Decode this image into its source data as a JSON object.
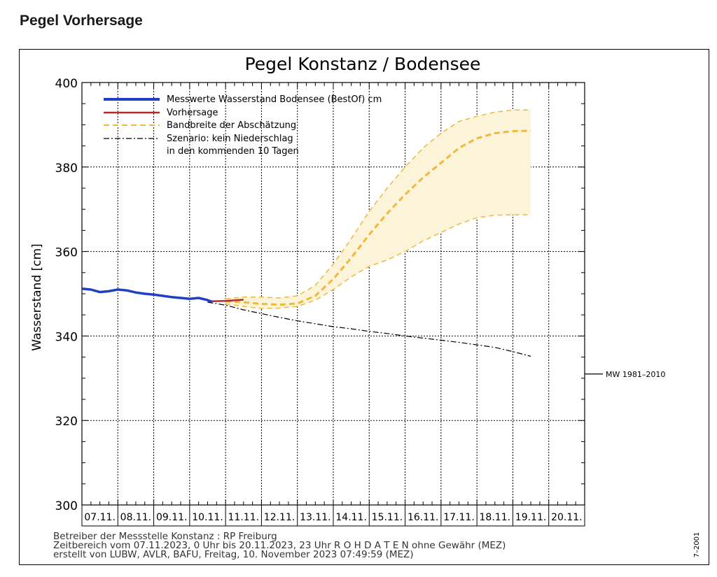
{
  "page": {
    "heading": "Pegel Vorhersage"
  },
  "chart_data": {
    "type": "line",
    "title": "Pegel Konstanz / Bodensee",
    "ylabel": "Wasserstand [cm]",
    "xlabel": "",
    "ylim": [
      300,
      400
    ],
    "yticks": [
      300,
      320,
      340,
      360,
      380,
      400
    ],
    "x_unit": "days from 07.11.2023 00:00",
    "x_categories": [
      "07.11.",
      "08.11.",
      "09.11.",
      "10.11.",
      "11.11.",
      "12.11.",
      "13.11.",
      "14.11.",
      "15.11.",
      "16.11.",
      "17.11.",
      "18.11.",
      "19.11.",
      "20.11."
    ],
    "grid": true,
    "legend_position": "top-left",
    "legend": [
      {
        "label": "Messwerte Wasserstand Bodensee   (BestOf)   cm",
        "color": "#1f3fc4",
        "style": "solid-thick"
      },
      {
        "label": "Vorhersage",
        "color": "#b8282a",
        "style": "solid"
      },
      {
        "label": "Bandbreite der Abschätzung",
        "color": "#f0b840",
        "style": "dashed"
      },
      {
        "label": "Szenario: kein Niederschlag",
        "color": "#000000",
        "style": "dash-dot"
      },
      {
        "label": "in den kommenden 10 Tagen",
        "color": "",
        "style": "none"
      }
    ],
    "series": [
      {
        "name": "Messwerte Wasserstand Bodensee (BestOf) cm",
        "x": [
          "07.11.2023 00:00",
          "07.11.2023 06:00",
          "07.11.2023 12:00",
          "07.11.2023 18:00",
          "08.11.2023 00:00",
          "08.11.2023 06:00",
          "08.11.2023 12:00",
          "08.11.2023 18:00",
          "09.11.2023 00:00",
          "09.11.2023 06:00",
          "09.11.2023 12:00",
          "09.11.2023 18:00",
          "10.11.2023 00:00",
          "10.11.2023 06:00",
          "10.11.2023 12:00",
          "10.11.2023 15:00"
        ],
        "y": [
          351.2,
          351.0,
          350.4,
          350.6,
          351.0,
          350.8,
          350.3,
          350.0,
          349.8,
          349.5,
          349.2,
          349.0,
          348.8,
          349.0,
          348.5,
          348.1
        ]
      },
      {
        "name": "Vorhersage",
        "x": [
          "10.11.2023 12:00",
          "11.11.2023 00:00",
          "11.11.2023 12:00"
        ],
        "y": [
          348.2,
          348.3,
          348.6
        ]
      },
      {
        "name": "Bandbreite der Abschätzung (Median)",
        "x": [
          "11.11.2023 00:00",
          "11.11.2023 12:00",
          "12.11.2023 00:00",
          "12.11.2023 12:00",
          "13.11.2023 00:00",
          "13.11.2023 12:00",
          "14.11.2023 00:00",
          "14.11.2023 12:00",
          "15.11.2023 00:00",
          "15.11.2023 12:00",
          "16.11.2023 00:00",
          "16.11.2023 12:00",
          "17.11.2023 00:00",
          "17.11.2023 12:00",
          "18.11.2023 00:00",
          "18.11.2023 12:00",
          "19.11.2023 00:00",
          "19.11.2023 12:00"
        ],
        "y": [
          348.2,
          348.0,
          347.6,
          347.4,
          347.7,
          349.5,
          353.5,
          358.5,
          364.0,
          369.0,
          373.5,
          377.5,
          381.0,
          384.5,
          386.8,
          388.0,
          388.5,
          388.6
        ]
      },
      {
        "name": "Bandbreite der Abschätzung (Obergrenze)",
        "x": [
          "11.11.2023 00:00",
          "11.11.2023 12:00",
          "12.11.2023 00:00",
          "12.11.2023 12:00",
          "13.11.2023 00:00",
          "13.11.2023 12:00",
          "14.11.2023 00:00",
          "14.11.2023 12:00",
          "15.11.2023 00:00",
          "15.11.2023 12:00",
          "16.11.2023 00:00",
          "16.11.2023 12:00",
          "17.11.2023 00:00",
          "17.11.2023 12:00",
          "18.11.2023 00:00",
          "18.11.2023 12:00",
          "19.11.2023 00:00",
          "19.11.2023 12:00"
        ],
        "y": [
          348.8,
          349.2,
          349.2,
          349.0,
          349.5,
          352.0,
          357.0,
          363.0,
          369.5,
          375.0,
          380.0,
          384.5,
          388.0,
          390.8,
          392.0,
          393.0,
          393.5,
          393.5
        ]
      },
      {
        "name": "Bandbreite der Abschätzung (Untergrenze)",
        "x": [
          "11.11.2023 00:00",
          "11.11.2023 12:00",
          "12.11.2023 00:00",
          "12.11.2023 12:00",
          "13.11.2023 00:00",
          "13.11.2023 12:00",
          "14.11.2023 00:00",
          "14.11.2023 12:00",
          "15.11.2023 00:00",
          "15.11.2023 12:00",
          "16.11.2023 00:00",
          "16.11.2023 12:00",
          "17.11.2023 00:00",
          "17.11.2023 12:00",
          "18.11.2023 00:00",
          "18.11.2023 12:00",
          "19.11.2023 00:00",
          "19.11.2023 12:00"
        ],
        "y": [
          347.6,
          347.0,
          346.5,
          346.6,
          347.0,
          348.5,
          351.0,
          354.0,
          356.5,
          358.0,
          360.0,
          362.5,
          364.5,
          366.5,
          368.0,
          368.6,
          368.7,
          368.7
        ]
      },
      {
        "name": "Szenario: kein Niederschlag in den kommenden 10 Tagen",
        "x": [
          "10.11.2023 12:00",
          "11.11.2023 00:00",
          "11.11.2023 12:00",
          "12.11.2023 00:00",
          "12.11.2023 12:00",
          "13.11.2023 00:00",
          "13.11.2023 12:00",
          "14.11.2023 00:00",
          "14.11.2023 12:00",
          "15.11.2023 00:00",
          "15.11.2023 12:00",
          "16.11.2023 00:00",
          "16.11.2023 12:00",
          "17.11.2023 00:00",
          "17.11.2023 12:00",
          "18.11.2023 00:00",
          "18.11.2023 12:00",
          "19.11.2023 00:00",
          "19.11.2023 12:00"
        ],
        "y": [
          348.0,
          347.3,
          346.2,
          345.3,
          344.4,
          343.6,
          342.9,
          342.2,
          341.7,
          341.1,
          340.6,
          340.0,
          339.5,
          339.0,
          338.5,
          337.9,
          337.3,
          336.3,
          335.2
        ]
      }
    ],
    "reference_line": {
      "label": "MW 1981–2010",
      "y": 331.0
    },
    "footer": [
      "Betreiber der Messstelle Konstanz : RP Freiburg",
      "Zeitbereich vom 07.11.2023, 0 Uhr bis 20.11.2023, 23 Uhr    R O H D A T E N ohne Gewähr (MEZ)",
      "erstellt von LUBW, AVLR, BAFU, Freitag, 10. November 2023 07:49:59 (MEZ)"
    ],
    "side_code": "7–2001"
  }
}
